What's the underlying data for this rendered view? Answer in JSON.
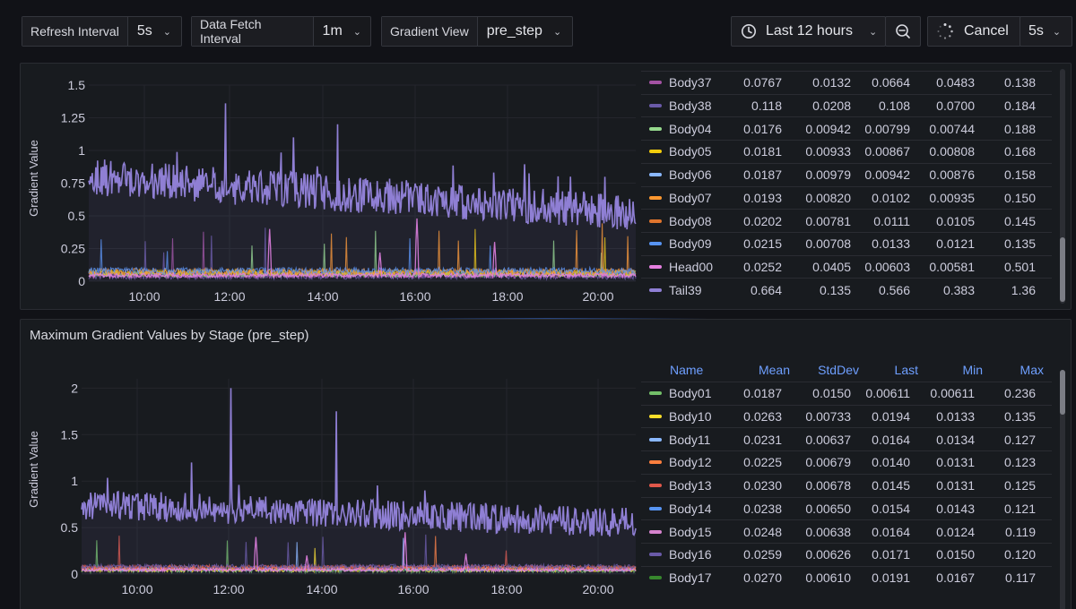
{
  "toolbar": {
    "refresh": {
      "label": "Refresh Interval",
      "value": "5s"
    },
    "fetch": {
      "label": "Data Fetch Interval",
      "value": "1m"
    },
    "gradient": {
      "label": "Gradient View",
      "value": "pre_step"
    },
    "time_range": "Last 12 hours",
    "cancel_label": "Cancel",
    "interval": "5s"
  },
  "colors": {
    "purple_main": "#8f7fd4",
    "pink": "#e57fe0"
  },
  "panel1": {
    "ylabel": "Gradient Value",
    "yticks": [
      "1.5",
      "1.25",
      "1",
      "0.75",
      "0.5",
      "0.25",
      "0"
    ],
    "xticks": [
      "10:00",
      "12:00",
      "14:00",
      "16:00",
      "18:00",
      "20:00"
    ],
    "legend": [
      {
        "name": "Body37",
        "color": "#a352a3",
        "cols": [
          "0.0767",
          "0.0132",
          "0.0664",
          "0.0483",
          "0.138"
        ]
      },
      {
        "name": "Body38",
        "color": "#6a5aa8",
        "cols": [
          "0.118",
          "0.0208",
          "0.108",
          "0.0700",
          "0.184"
        ]
      },
      {
        "name": "Body04",
        "color": "#96d98d",
        "cols": [
          "0.0176",
          "0.00942",
          "0.00799",
          "0.00744",
          "0.188"
        ]
      },
      {
        "name": "Body05",
        "color": "#f2cc0c",
        "cols": [
          "0.0181",
          "0.00933",
          "0.00867",
          "0.00808",
          "0.168"
        ]
      },
      {
        "name": "Body06",
        "color": "#8ab8ff",
        "cols": [
          "0.0187",
          "0.00979",
          "0.00942",
          "0.00876",
          "0.158"
        ]
      },
      {
        "name": "Body07",
        "color": "#ff9830",
        "cols": [
          "0.0193",
          "0.00820",
          "0.0102",
          "0.00935",
          "0.150"
        ]
      },
      {
        "name": "Body08",
        "color": "#e0752d",
        "cols": [
          "0.0202",
          "0.00781",
          "0.0111",
          "0.0105",
          "0.145"
        ]
      },
      {
        "name": "Body09",
        "color": "#5794f2",
        "cols": [
          "0.0215",
          "0.00708",
          "0.0133",
          "0.0121",
          "0.135"
        ]
      },
      {
        "name": "Head00",
        "color": "#e57fe0",
        "cols": [
          "0.0252",
          "0.0405",
          "0.00603",
          "0.00581",
          "0.501"
        ]
      },
      {
        "name": "Tail39",
        "color": "#8f7fd4",
        "cols": [
          "0.664",
          "0.135",
          "0.566",
          "0.383",
          "1.36"
        ]
      }
    ]
  },
  "panel2": {
    "title": "Maximum Gradient Values by Stage (pre_step)",
    "ylabel": "Gradient Value",
    "yticks": [
      "2",
      "1.5",
      "1",
      "0.5",
      "0"
    ],
    "xticks": [
      "10:00",
      "12:00",
      "14:00",
      "16:00",
      "18:00",
      "20:00"
    ],
    "headers": [
      "Name",
      "Mean",
      "StdDev",
      "Last",
      "Min",
      "Max"
    ],
    "legend": [
      {
        "name": "Body01",
        "color": "#73bf69",
        "cols": [
          "0.0187",
          "0.0150",
          "0.00611",
          "0.00611",
          "0.236"
        ]
      },
      {
        "name": "Body10",
        "color": "#fade2a",
        "cols": [
          "0.0263",
          "0.00733",
          "0.0194",
          "0.0133",
          "0.135"
        ]
      },
      {
        "name": "Body11",
        "color": "#8ab8ff",
        "cols": [
          "0.0231",
          "0.00637",
          "0.0164",
          "0.0134",
          "0.127"
        ]
      },
      {
        "name": "Body12",
        "color": "#ff7f3e",
        "cols": [
          "0.0225",
          "0.00679",
          "0.0140",
          "0.0131",
          "0.123"
        ]
      },
      {
        "name": "Body13",
        "color": "#e0584a",
        "cols": [
          "0.0230",
          "0.00678",
          "0.0145",
          "0.0131",
          "0.125"
        ]
      },
      {
        "name": "Body14",
        "color": "#5794f2",
        "cols": [
          "0.0238",
          "0.00650",
          "0.0154",
          "0.0143",
          "0.121"
        ]
      },
      {
        "name": "Body15",
        "color": "#d683ce",
        "cols": [
          "0.0248",
          "0.00638",
          "0.0164",
          "0.0124",
          "0.119"
        ]
      },
      {
        "name": "Body16",
        "color": "#6a5aa8",
        "cols": [
          "0.0259",
          "0.00626",
          "0.0171",
          "0.0150",
          "0.120"
        ]
      },
      {
        "name": "Body17",
        "color": "#37872d",
        "cols": [
          "0.0270",
          "0.00610",
          "0.0191",
          "0.0167",
          "0.117"
        ]
      }
    ]
  }
}
